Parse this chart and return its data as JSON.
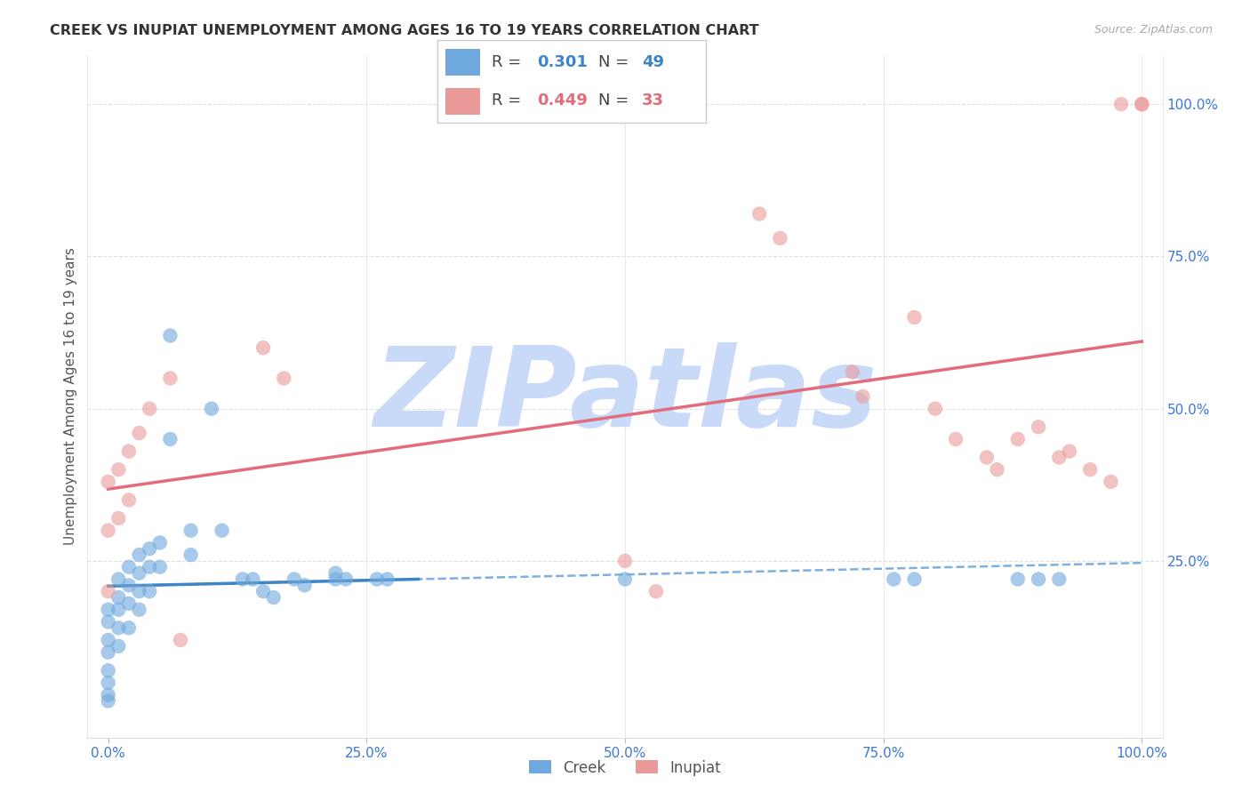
{
  "title": "CREEK VS INUPIAT UNEMPLOYMENT AMONG AGES 16 TO 19 YEARS CORRELATION CHART",
  "source": "Source: ZipAtlas.com",
  "ylabel": "Unemployment Among Ages 16 to 19 years",
  "xlim": [
    -0.02,
    1.02
  ],
  "ylim": [
    -0.04,
    1.08
  ],
  "xticks": [
    0.0,
    0.25,
    0.5,
    0.75,
    1.0
  ],
  "xticklabels": [
    "0.0%",
    "25.0%",
    "50.0%",
    "75.0%",
    "100.0%"
  ],
  "yticks": [
    0.0,
    0.25,
    0.5,
    0.75,
    1.0
  ],
  "yticklabels": [
    "",
    "25.0%",
    "50.0%",
    "75.0%",
    "100.0%"
  ],
  "creek_color": "#6fa8dc",
  "inupiat_color": "#ea9999",
  "creek_line_color": "#3d85c8",
  "creek_dash_color": "#6fa8dc",
  "inupiat_line_color": "#e06c7c",
  "creek_R": "0.301",
  "creek_N": "49",
  "inupiat_R": "0.449",
  "inupiat_N": "33",
  "watermark": "ZIPatlas",
  "watermark_color": "#c9daf8",
  "bg_color": "#ffffff",
  "grid_color": "#e0e0e0",
  "tick_color": "#3c78d8",
  "title_color": "#333333",
  "source_color": "#aaaaaa",
  "legend_edge_color": "#cccccc",
  "creek_x": [
    0.0,
    0.0,
    0.0,
    0.0,
    0.0,
    0.0,
    0.0,
    0.0,
    0.01,
    0.01,
    0.01,
    0.01,
    0.01,
    0.02,
    0.02,
    0.02,
    0.02,
    0.03,
    0.03,
    0.03,
    0.03,
    0.04,
    0.04,
    0.04,
    0.05,
    0.05,
    0.06,
    0.06,
    0.08,
    0.08,
    0.1,
    0.11,
    0.13,
    0.14,
    0.15,
    0.16,
    0.18,
    0.19,
    0.22,
    0.22,
    0.23,
    0.26,
    0.27,
    0.5,
    0.76,
    0.78,
    0.88,
    0.9,
    0.92
  ],
  "creek_y": [
    0.17,
    0.15,
    0.12,
    0.1,
    0.07,
    0.05,
    0.03,
    0.02,
    0.22,
    0.19,
    0.17,
    0.14,
    0.11,
    0.24,
    0.21,
    0.18,
    0.14,
    0.26,
    0.23,
    0.2,
    0.17,
    0.27,
    0.24,
    0.2,
    0.28,
    0.24,
    0.62,
    0.45,
    0.3,
    0.26,
    0.5,
    0.3,
    0.22,
    0.22,
    0.2,
    0.19,
    0.22,
    0.21,
    0.23,
    0.22,
    0.22,
    0.22,
    0.22,
    0.22,
    0.22,
    0.22,
    0.22,
    0.22,
    0.22
  ],
  "inupiat_x": [
    0.0,
    0.0,
    0.0,
    0.01,
    0.01,
    0.02,
    0.02,
    0.03,
    0.04,
    0.06,
    0.07,
    0.15,
    0.17,
    0.5,
    0.53,
    0.63,
    0.65,
    0.72,
    0.73,
    0.78,
    0.8,
    0.82,
    0.85,
    0.86,
    0.88,
    0.9,
    0.92,
    0.93,
    0.95,
    0.97,
    0.98,
    1.0,
    1.0
  ],
  "inupiat_y": [
    0.38,
    0.3,
    0.2,
    0.4,
    0.32,
    0.43,
    0.35,
    0.46,
    0.5,
    0.55,
    0.12,
    0.6,
    0.55,
    0.25,
    0.2,
    0.82,
    0.78,
    0.56,
    0.52,
    0.65,
    0.5,
    0.45,
    0.42,
    0.4,
    0.45,
    0.47,
    0.42,
    0.43,
    0.4,
    0.38,
    1.0,
    1.0,
    1.0
  ]
}
